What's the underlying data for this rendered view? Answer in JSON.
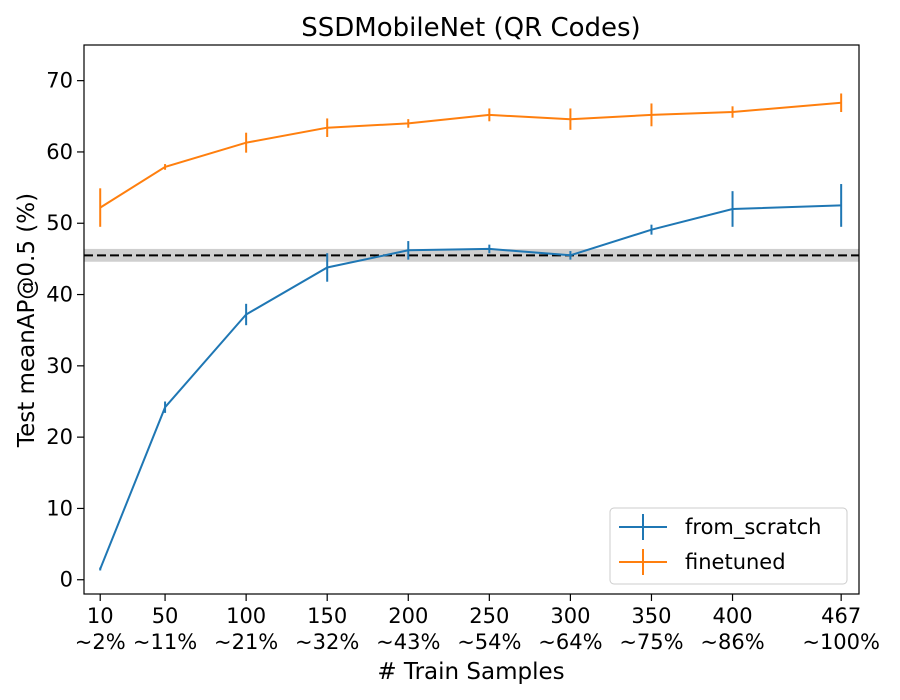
{
  "chart_data": {
    "type": "line",
    "title": "SSDMobileNet (QR Codes)",
    "xlabel": "# Train Samples",
    "ylabel": "Test meanAP@0.5 (%)",
    "x": [
      10,
      50,
      100,
      150,
      200,
      250,
      300,
      350,
      400,
      467
    ],
    "x_tick_labels": [
      [
        "10",
        "~2%"
      ],
      [
        "50",
        "~11%"
      ],
      [
        "100",
        "~21%"
      ],
      [
        "150",
        "~32%"
      ],
      [
        "200",
        "~43%"
      ],
      [
        "250",
        "~54%"
      ],
      [
        "300",
        "~64%"
      ],
      [
        "350",
        "~75%"
      ],
      [
        "400",
        "~86%"
      ],
      [
        "467",
        "~100%"
      ]
    ],
    "y_ticks": [
      0,
      10,
      20,
      30,
      40,
      50,
      60,
      70
    ],
    "xlim": [
      0,
      478
    ],
    "ylim": [
      -2,
      75
    ],
    "grid": false,
    "legend_position": "bottom-right",
    "series": [
      {
        "name": "from_scratch",
        "color": "#1f77b4",
        "values": [
          1.5,
          24.2,
          37.2,
          43.8,
          46.2,
          46.4,
          45.5,
          49.1,
          52.0,
          52.5
        ],
        "errors": [
          0.2,
          0.8,
          1.5,
          2.0,
          1.3,
          0.6,
          0.6,
          0.7,
          2.5,
          3.0
        ]
      },
      {
        "name": "finetuned",
        "color": "#ff7f0e",
        "values": [
          52.2,
          57.9,
          61.3,
          63.4,
          64.0,
          65.2,
          64.6,
          65.2,
          65.6,
          66.9
        ],
        "errors": [
          2.7,
          0.4,
          1.4,
          1.3,
          0.6,
          0.9,
          1.5,
          1.6,
          0.8,
          1.3
        ]
      }
    ],
    "reference_line": {
      "value": 45.5,
      "band": [
        44.6,
        46.4
      ],
      "style": "dashed",
      "color": "#000000",
      "band_color": "#cfcfcf"
    }
  }
}
